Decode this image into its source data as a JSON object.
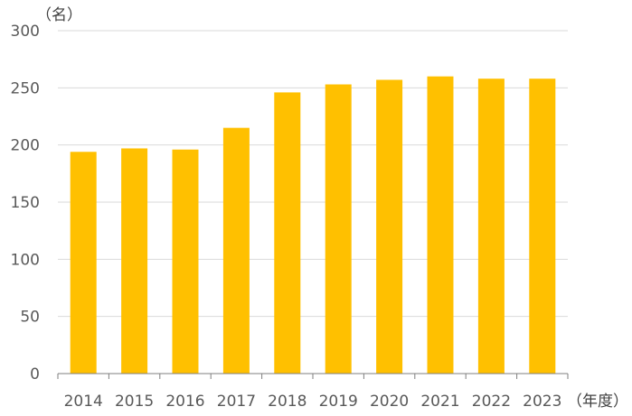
{
  "chart_data": {
    "type": "bar",
    "y_unit_label": "（名）",
    "x_unit_label": "（年度）",
    "categories": [
      "2014",
      "2015",
      "2016",
      "2017",
      "2018",
      "2019",
      "2020",
      "2021",
      "2022",
      "2023"
    ],
    "values": [
      194,
      197,
      196,
      215,
      246,
      253,
      257,
      260,
      258,
      258
    ],
    "ylim": [
      0,
      300
    ],
    "yticks": [
      "0",
      "50",
      "100",
      "150",
      "200",
      "250",
      "300"
    ],
    "grid": true,
    "colors": {
      "bar": "#FFC000",
      "grid": "#D9D9D9",
      "axis": "#7F7F7F",
      "text": "#595959"
    }
  }
}
